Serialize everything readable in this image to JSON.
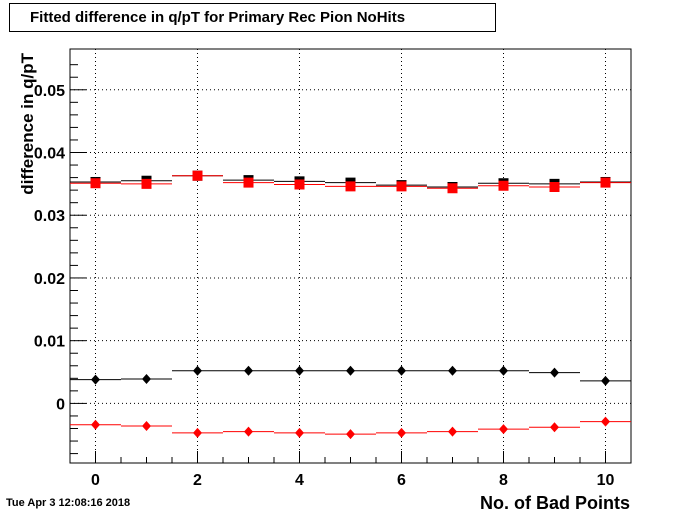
{
  "chart_data": {
    "type": "scatter",
    "title": "Fitted difference in q/pT for Primary Rec Pion NoHits",
    "xlabel": "No. of Bad Points",
    "ylabel": "difference in q/pT",
    "xlim": [
      -0.5,
      10.5
    ],
    "ylim": [
      -0.0095,
      0.0565
    ],
    "xticks": [
      "0",
      "2",
      "4",
      "6",
      "8",
      "10"
    ],
    "yticks": [
      "0",
      "0.01",
      "0.02",
      "0.03",
      "0.04",
      "0.05"
    ],
    "grid": true,
    "x": [
      0,
      1,
      2,
      3,
      4,
      5,
      6,
      7,
      8,
      9,
      10
    ],
    "series": [
      {
        "marker": "square",
        "color": "#000000",
        "values": [
          0.0353,
          0.0355,
          0.0363,
          0.0356,
          0.0354,
          0.0352,
          0.0348,
          0.0345,
          0.0351,
          0.035,
          0.0353
        ]
      },
      {
        "marker": "square",
        "color": "#ff0000",
        "values": [
          0.0351,
          0.035,
          0.0363,
          0.0352,
          0.0349,
          0.0346,
          0.0346,
          0.0343,
          0.0347,
          0.0345,
          0.0352
        ]
      },
      {
        "marker": "diamond",
        "color": "#000000",
        "values": [
          0.0038,
          0.0039,
          0.0052,
          0.0052,
          0.0052,
          0.0052,
          0.0052,
          0.0052,
          0.0052,
          0.0049,
          0.0036
        ]
      },
      {
        "marker": "diamond",
        "color": "#ff0000",
        "values": [
          -0.0034,
          -0.0036,
          -0.0047,
          -0.0045,
          -0.0047,
          -0.0049,
          -0.0047,
          -0.0045,
          -0.0041,
          -0.0038,
          -0.0029
        ]
      }
    ]
  },
  "footer": {
    "timestamp": "Tue Apr  3 12:08:16 2018"
  }
}
